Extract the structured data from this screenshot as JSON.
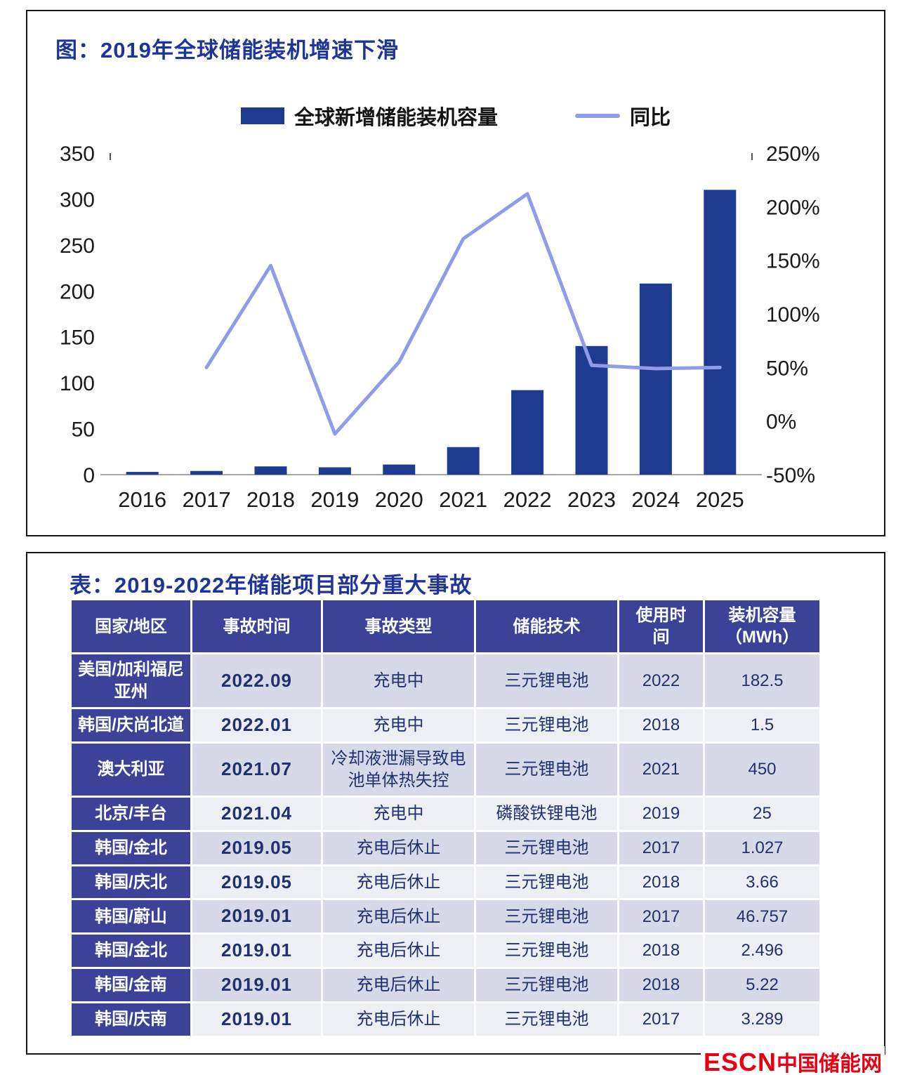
{
  "chart_data": {
    "type": "bar",
    "title": "图：2019年全球储能装机增速下滑",
    "categories": [
      "2016",
      "2017",
      "2018",
      "2019",
      "2020",
      "2021",
      "2022",
      "2023",
      "2024",
      "2025"
    ],
    "series": [
      {
        "name": "全球新增储能装机容量",
        "type": "bar",
        "axis": "left",
        "values": [
          3,
          4,
          9,
          8,
          11,
          30,
          92,
          140,
          208,
          310
        ]
      },
      {
        "name": "同比",
        "type": "line",
        "axis": "right",
        "values": [
          null,
          50,
          145,
          -12,
          55,
          170,
          212,
          52,
          49,
          50
        ]
      }
    ],
    "left_axis": {
      "min": 0,
      "max": 350,
      "tick_step": 50,
      "tick_labels": [
        "0",
        "50",
        "100",
        "150",
        "200",
        "250",
        "300",
        "350"
      ]
    },
    "right_axis": {
      "min": -50,
      "max": 250,
      "tick_step": 50,
      "tick_labels": [
        "-50%",
        "0%",
        "50%",
        "100%",
        "150%",
        "200%",
        "250%"
      ]
    },
    "legend_position": "top",
    "grid": false,
    "colors": {
      "bar": "#1f3b8f",
      "line": "#8f9de8"
    }
  },
  "table": {
    "title": "表：2019-2022年储能项目部分重大事故",
    "headers": [
      "国家/地区",
      "事故时间",
      "事故类型",
      "储能技术",
      "使用时\n间",
      "装机容量\n（MWh）"
    ],
    "rows": [
      [
        "美国/加利福尼亚州",
        "2022.09",
        "充电中",
        "三元锂电池",
        "2022",
        "182.5"
      ],
      [
        "韩国/庆尚北道",
        "2022.01",
        "充电中",
        "三元锂电池",
        "2018",
        "1.5"
      ],
      [
        "澳大利亚",
        "2021.07",
        "冷却液泄漏导致电池单体热失控",
        "三元锂电池",
        "2021",
        "450"
      ],
      [
        "北京/丰台",
        "2021.04",
        "充电中",
        "磷酸铁锂电池",
        "2019",
        "25"
      ],
      [
        "韩国/金北",
        "2019.05",
        "充电后休止",
        "三元锂电池",
        "2017",
        "1.027"
      ],
      [
        "韩国/庆北",
        "2019.05",
        "充电后休止",
        "三元锂电池",
        "2018",
        "3.66"
      ],
      [
        "韩国/蔚山",
        "2019.01",
        "充电后休止",
        "三元锂电池",
        "2017",
        "46.757"
      ],
      [
        "韩国/金北",
        "2019.01",
        "充电后休止",
        "三元锂电池",
        "2018",
        "2.496"
      ],
      [
        "韩国/金南",
        "2019.01",
        "充电后休止",
        "三元锂电池",
        "2018",
        "5.22"
      ],
      [
        "韩国/庆南",
        "2019.01",
        "充电后休止",
        "三元锂电池",
        "2017",
        "3.289"
      ]
    ]
  },
  "footer": {
    "logo_en": "ESCN",
    "logo_cn": "中国储能网"
  }
}
